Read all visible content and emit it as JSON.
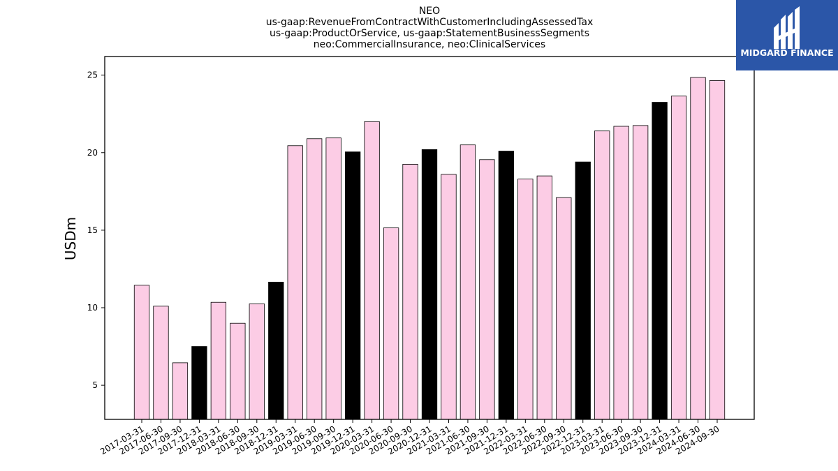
{
  "chart_data": {
    "type": "bar",
    "title_lines": [
      "NEO",
      "us-gaap:RevenueFromContractWithCustomerIncludingAssessedTax",
      "us-gaap:ProductOrService, us-gaap:StatementBusinessSegments",
      "neo:CommercialInsurance, neo:ClinicalServices"
    ],
    "ylabel": "USDm",
    "xlabel": "",
    "ylim": [
      2.8,
      26.2
    ],
    "yticks": [
      5,
      10,
      15,
      20,
      25
    ],
    "grid": false,
    "legend": "none",
    "colors": {
      "quarter": "#fccce5",
      "year_end": "#000000",
      "edge": "#000000"
    },
    "categories": [
      "2017-03-31",
      "2017-06-30",
      "2017-09-30",
      "2017-12-31",
      "2018-03-31",
      "2018-06-30",
      "2018-09-30",
      "2018-12-31",
      "2019-03-31",
      "2019-06-30",
      "2019-09-30",
      "2019-12-31",
      "2020-03-31",
      "2020-06-30",
      "2020-09-30",
      "2020-12-31",
      "2021-03-31",
      "2021-06-30",
      "2021-09-30",
      "2021-12-31",
      "2022-03-31",
      "2022-06-30",
      "2022-09-30",
      "2022-12-31",
      "2023-03-31",
      "2023-06-30",
      "2023-09-30",
      "2023-12-31",
      "2024-03-31",
      "2024-06-30",
      "2024-09-30"
    ],
    "values": [
      11.45,
      10.1,
      6.45,
      7.5,
      10.35,
      9.0,
      10.25,
      11.65,
      20.45,
      20.9,
      20.95,
      20.05,
      22.0,
      15.15,
      19.25,
      20.2,
      18.6,
      20.5,
      19.55,
      20.1,
      18.3,
      18.5,
      17.1,
      19.4,
      21.4,
      21.7,
      21.75,
      23.25,
      23.65,
      24.85,
      24.65
    ]
  },
  "logo": {
    "text": "MIDGARD FINANCE",
    "background": "#2b56a8"
  }
}
